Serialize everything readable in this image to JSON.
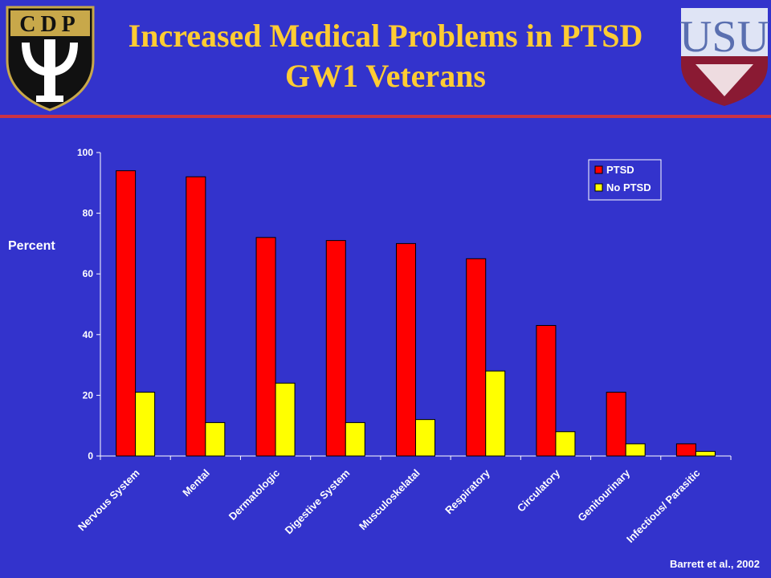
{
  "slide": {
    "title_line1": "Increased Medical Problems in PTSD",
    "title_line2": "GW1 Veterans",
    "citation": "Barrett et al., 2002",
    "left_logo_text": "CDP",
    "right_logo_text": "USU"
  },
  "colors": {
    "background": "#3333cc",
    "title": "#ffcc33",
    "divider": "#cc3344",
    "ptsd": "#ff0000",
    "no_ptsd": "#ffff00"
  },
  "chart_data": {
    "type": "bar",
    "ylabel": "Percent",
    "xlabel": "",
    "ylim": [
      0,
      100
    ],
    "yticks": [
      0,
      20,
      40,
      60,
      80,
      100
    ],
    "grid": false,
    "legend_position": "top-right",
    "categories": [
      "Nervous System",
      "Mental",
      "Dermatologic",
      "Digestive System",
      "Musculoskelatal",
      "Respiratory",
      "Circulatory",
      "Genitourinary",
      "Infectious/ Parasitic"
    ],
    "series": [
      {
        "name": "PTSD",
        "color": "#ff0000",
        "values": [
          94,
          92,
          72,
          71,
          70,
          65,
          43,
          21,
          4
        ]
      },
      {
        "name": "No PTSD",
        "color": "#ffff00",
        "values": [
          21,
          11,
          24,
          11,
          12,
          28,
          8,
          4,
          1.5
        ]
      }
    ]
  }
}
